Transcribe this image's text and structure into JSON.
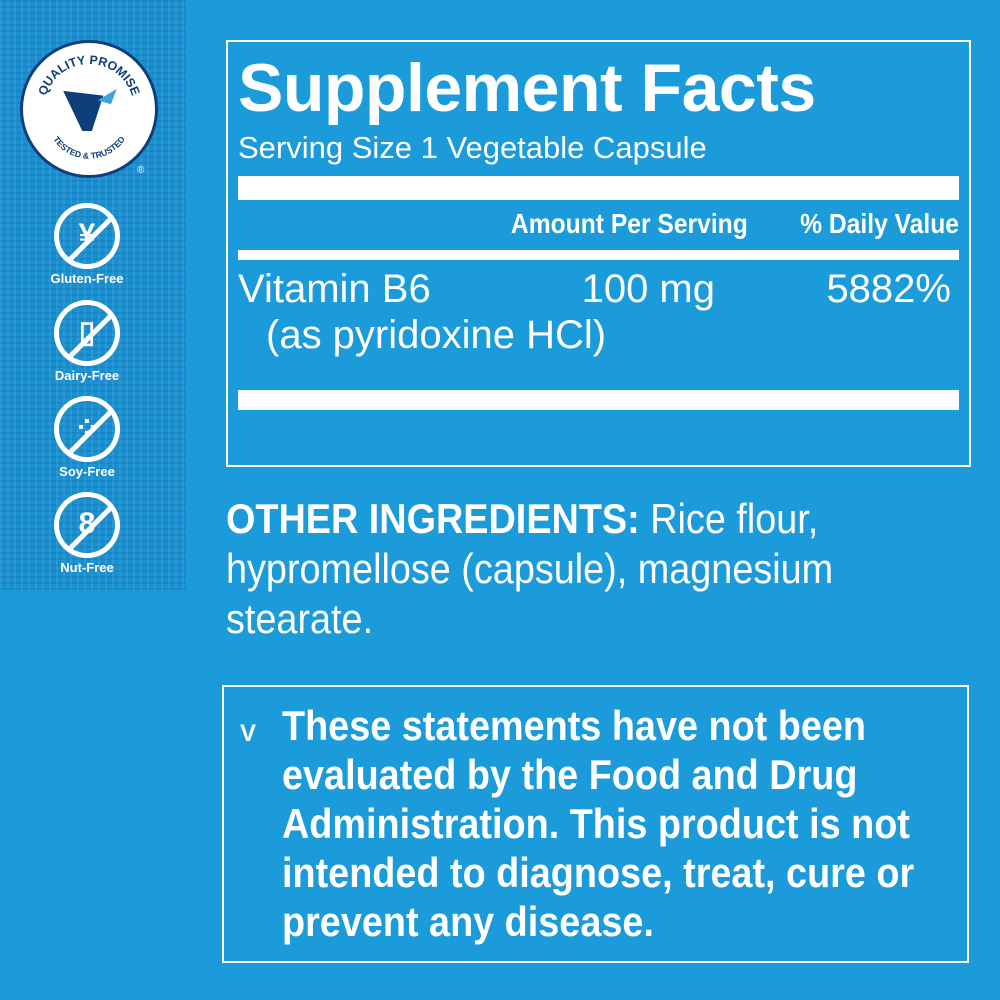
{
  "badges": {
    "seal_top": "QUALITY PROMISE",
    "seal_bottom": "TESTED & TRUSTED",
    "items": [
      {
        "label": "Gluten-Free",
        "icon": "wheat-icon"
      },
      {
        "label": "Dairy-Free",
        "icon": "milk-bottle-icon"
      },
      {
        "label": "Soy-Free",
        "icon": "soybean-icon"
      },
      {
        "label": "Nut-Free",
        "icon": "peanut-icon"
      }
    ]
  },
  "facts": {
    "title": "Supplement Facts",
    "serving": "Serving Size 1 Vegetable Capsule",
    "col_amount": "Amount Per Serving",
    "col_dv": "% Daily Value",
    "rows": [
      {
        "name": "Vitamin B6",
        "sub": "(as pyridoxine HCl)",
        "amount": "100 mg",
        "dv": "5882%"
      }
    ]
  },
  "other": {
    "label": "OTHER INGREDIENTS:",
    "text": " Rice flour, hypromellose (capsule), magnesium stearate."
  },
  "disclaimer": "These statements have not been evaluated by the Food and Drug Administration. This product is not intended to diagnose, treat, cure or prevent any disease.",
  "colors": {
    "background": "#1b9bd9",
    "seal_navy": "#0e3f7a"
  }
}
